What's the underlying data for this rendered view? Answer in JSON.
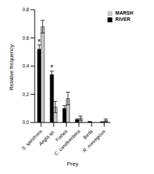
{
  "chart_data": {
    "type": "bar",
    "x_label": "Prey",
    "y_label": "Relative frequency",
    "categories": [
      "S. spinifrons",
      "Aegla sp.",
      "Fishes",
      "C. candiverbera",
      "Birds",
      "R. norvegicus"
    ],
    "series": [
      {
        "name": "RIVER",
        "color": "#000000",
        "values": [
          0.52,
          0.34,
          0.1,
          0.02,
          0.005,
          0.003
        ],
        "errors": [
          0.03,
          0.025,
          0.02,
          0.005,
          0.003,
          0.002
        ]
      },
      {
        "name": "MARSH",
        "color": "#c8c8c8",
        "values": [
          0.68,
          0.11,
          0.17,
          0.03,
          0.0,
          0.015
        ],
        "errors": [
          0.045,
          0.04,
          0.045,
          0.015,
          0.0,
          0.01
        ]
      }
    ],
    "annotations": [
      {
        "category": "S. spinifrons",
        "series": "RIVER",
        "text": "*"
      },
      {
        "category": "Aegla sp.",
        "series": "RIVER",
        "text": "*"
      }
    ],
    "ylim": [
      0,
      0.8
    ],
    "yticks": [
      {
        "value": 0,
        "label": "0,0"
      },
      {
        "value": 0.2,
        "label": "0,2"
      },
      {
        "value": 0.4,
        "label": "0,4"
      },
      {
        "value": 0.6,
        "label": "0,6"
      },
      {
        "value": 0.8,
        "label": "0,8"
      }
    ],
    "legend": "upper right",
    "grid": false
  }
}
